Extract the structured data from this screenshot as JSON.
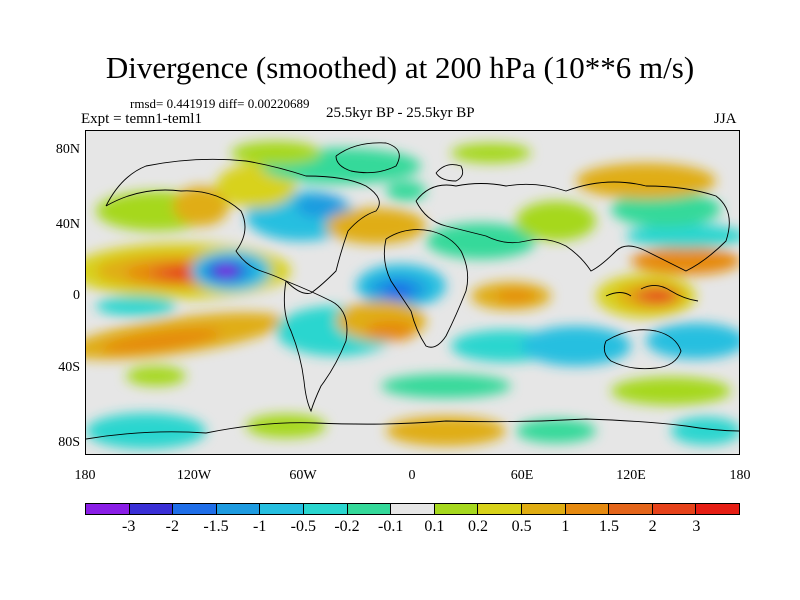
{
  "title": "Divergence (smoothed) at 200 hPa (10**6 m/s)",
  "stats": "rmsd= 0.441919 diff= 0.00220689",
  "expt": "Expt = temn1-teml1",
  "period": "25.5kyr BP - 25.5kyr BP",
  "season": "JJA",
  "lat_labels": [
    "80N",
    "40N",
    "0",
    "40S",
    "80S"
  ],
  "lon_labels": [
    "180",
    "120W",
    "60W",
    "0",
    "60E",
    "120E",
    "180"
  ],
  "colorbar": {
    "labels": [
      "-3",
      "-2",
      "-1.5",
      "-1",
      "-0.5",
      "-0.2",
      "-0.1",
      "0.1",
      "0.2",
      "0.5",
      "1",
      "1.5",
      "2",
      "3"
    ],
    "colors": [
      "#8a1ee6",
      "#3a2fd6",
      "#1f6ee8",
      "#1e9be0",
      "#26bfe0",
      "#2ad6cf",
      "#34d99a",
      "#e6e6e6",
      "#a6d81e",
      "#d8d21a",
      "#e0ad12",
      "#e68a10",
      "#e4651a",
      "#e6421a",
      "#e61e14"
    ]
  },
  "map_data": {
    "type": "filled-contour",
    "projection": "cylindrical-equidistant",
    "lon_range": [
      -180,
      180
    ],
    "lat_range": [
      -90,
      90
    ],
    "regions": [
      {
        "name": "central-pacific-positive",
        "lon": -123,
        "lat": 12,
        "value": 3
      },
      {
        "name": "north-pacific-positive",
        "lon": -150,
        "lat": 28,
        "value": 1
      },
      {
        "name": "tropical-americas-negative",
        "lon": -100,
        "lat": 12,
        "value": -3
      },
      {
        "name": "south-pacific-positive",
        "lon": -150,
        "lat": -25,
        "value": 1
      },
      {
        "name": "north-atlantic-negative",
        "lon": -55,
        "lat": 48,
        "value": -1
      },
      {
        "name": "west-africa-negative",
        "lon": -12,
        "lat": 2,
        "value": -2
      },
      {
        "name": "indian-ocean-positive",
        "lon": 60,
        "lat": -2,
        "value": 1
      },
      {
        "name": "maritime-continent-positive",
        "lon": 140,
        "lat": -3,
        "value": 2
      },
      {
        "name": "western-pacific-positive",
        "lon": 150,
        "lat": 20,
        "value": 1
      },
      {
        "name": "south-indian-negative",
        "lon": 100,
        "lat": -20,
        "value": -1
      },
      {
        "name": "arctic-positive",
        "lon": 60,
        "lat": 80,
        "value": 0.2
      },
      {
        "name": "southern-ocean-positive",
        "lon": 30,
        "lat": -70,
        "value": 0.5
      }
    ]
  }
}
